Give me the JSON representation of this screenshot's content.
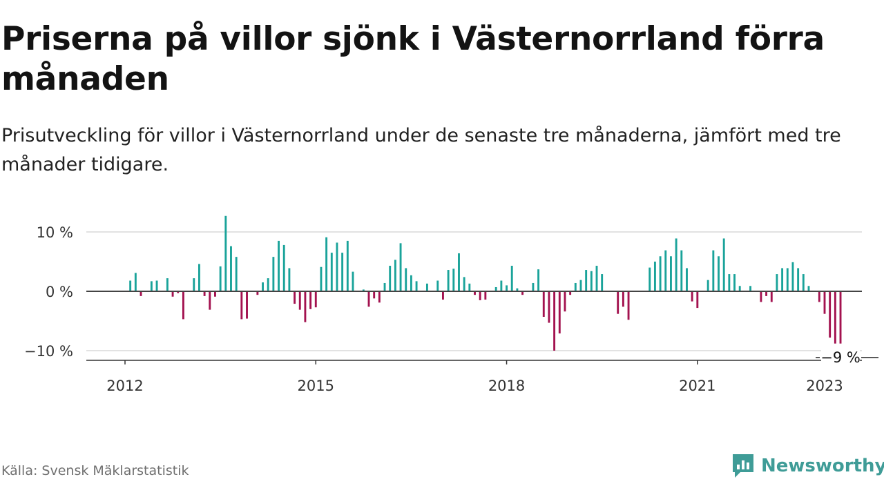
{
  "title": "Priserna på villor sjönk i Västernorrland förra månaden",
  "subtitle": "Prisutveckling för villor i Västernorrland under de senaste tre månaderna, jämfört med tre månader tidigare.",
  "source": "Källa: Svensk Mäklarstatistik",
  "brand": "Newsworthy",
  "colors": {
    "positive": "#1aa39a",
    "negative": "#a3124f",
    "brand": "#3f9c97"
  },
  "chart_data": {
    "type": "bar",
    "start": "2012-01",
    "values": [
      0.0,
      1.8,
      3.1,
      -0.8,
      0.0,
      1.7,
      1.8,
      0.0,
      2.2,
      -0.9,
      -0.3,
      -4.7,
      0.0,
      2.2,
      4.6,
      -0.8,
      -3.1,
      -0.9,
      4.2,
      12.7,
      7.6,
      5.8,
      -4.7,
      -4.6,
      0.0,
      -0.6,
      1.5,
      2.2,
      5.8,
      8.5,
      7.8,
      3.9,
      -2.1,
      -3.1,
      -5.2,
      -3.0,
      -2.7,
      4.1,
      9.1,
      6.5,
      8.2,
      6.5,
      8.5,
      3.3,
      0.0,
      0.3,
      -2.6,
      -1.2,
      -1.9,
      1.4,
      4.3,
      5.3,
      8.1,
      3.9,
      2.7,
      1.7,
      0.0,
      1.3,
      0.0,
      1.8,
      -1.4,
      3.6,
      3.8,
      6.4,
      2.4,
      1.3,
      -0.6,
      -1.5,
      -1.4,
      0.0,
      0.7,
      1.8,
      1.0,
      4.3,
      0.5,
      -0.6,
      0.0,
      1.4,
      3.7,
      -4.3,
      -5.3,
      -10.0,
      -7.1,
      -3.4,
      -0.6,
      1.4,
      1.9,
      3.6,
      3.4,
      4.3,
      2.9,
      0.0,
      0.0,
      -3.8,
      -2.6,
      -4.8,
      0.0,
      0.0,
      0.0,
      4.0,
      5.0,
      5.9,
      6.9,
      5.9,
      8.9,
      6.9,
      3.9,
      -1.7,
      -2.8,
      0.0,
      1.9,
      6.9,
      5.9,
      8.9,
      2.9,
      2.9,
      0.9,
      0.0,
      0.9,
      0.0,
      -1.8,
      -0.8,
      -1.8,
      2.9,
      3.9,
      3.9,
      4.9,
      3.9,
      2.9,
      0.9,
      0.0,
      -1.8,
      -3.8,
      -7.8,
      -8.8,
      -8.8
    ],
    "xlim_years": [
      2011,
      2023.8
    ],
    "ylim": [
      -11.5,
      13.5
    ],
    "yticks": [
      {
        "value": 10,
        "label": "10 %"
      },
      {
        "value": 0,
        "label": "0 %"
      },
      {
        "value": -10,
        "label": "−10 %"
      }
    ],
    "xticks": [
      {
        "year": 2012,
        "label": "2012"
      },
      {
        "year": 2015,
        "label": "2015"
      },
      {
        "year": 2018,
        "label": "2018"
      },
      {
        "year": 2021,
        "label": "2021"
      },
      {
        "year": 2023,
        "label": "2023"
      }
    ],
    "last_value_label": "−9 %",
    "grid": true
  }
}
